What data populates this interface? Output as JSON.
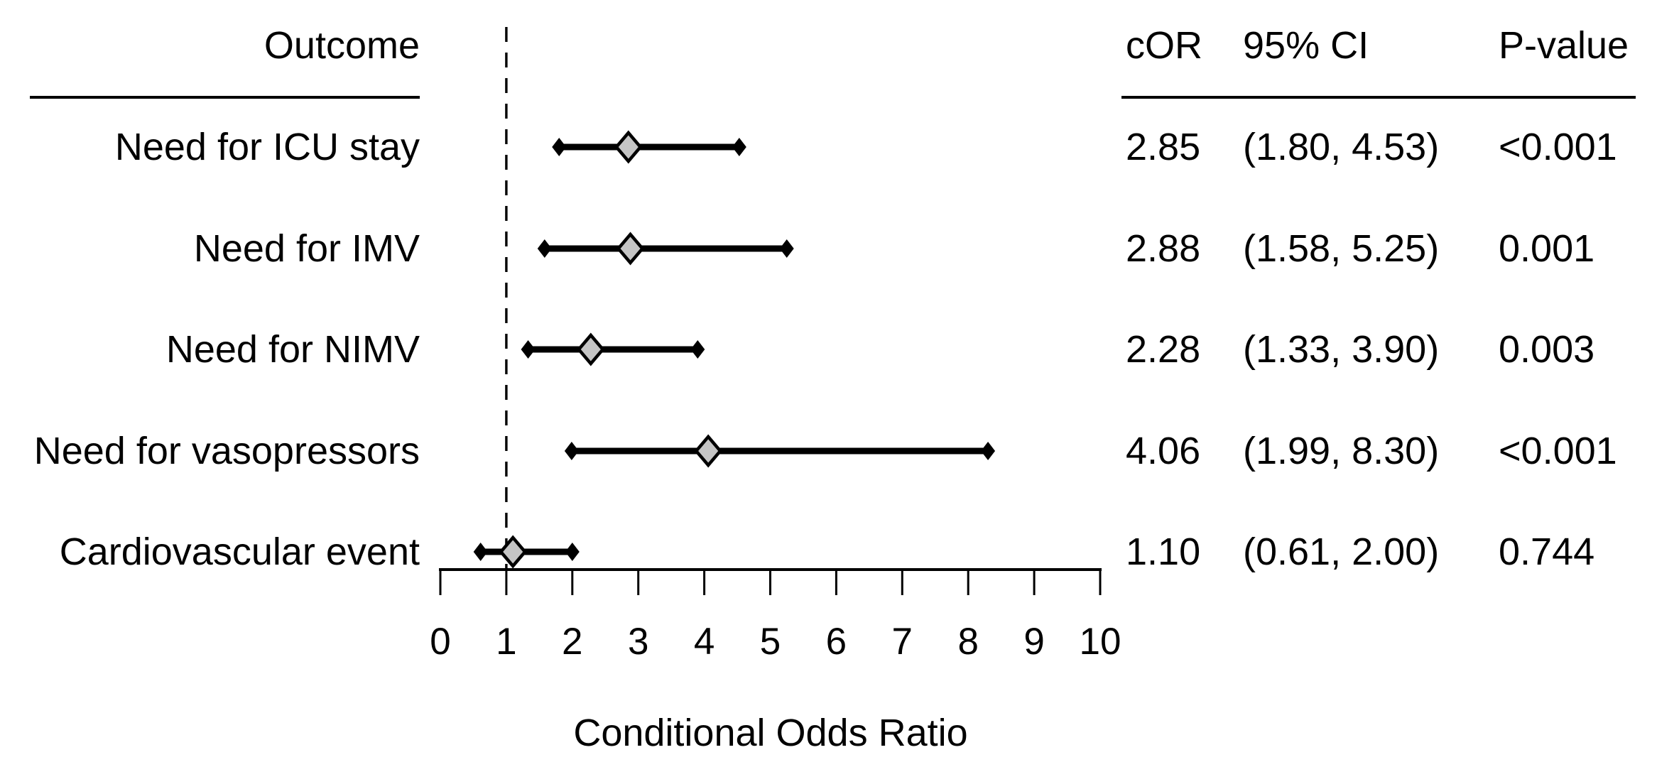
{
  "chart_data": {
    "type": "scatter",
    "variant": "forest-plot",
    "xlabel": "Conditional Odds Ratio",
    "xlim": [
      0,
      10
    ],
    "x_ticks": [
      "0",
      "1",
      "2",
      "3",
      "4",
      "5",
      "6",
      "7",
      "8",
      "9",
      "10"
    ],
    "reference_line_x": 1,
    "grid": "off",
    "columns": {
      "outcome": "Outcome",
      "cor": "cOR",
      "ci": "95% CI",
      "p": "P-value"
    },
    "rows": [
      {
        "outcome": "Need for ICU stay",
        "cor": 2.85,
        "cor_text": "2.85",
        "ci_low": 1.8,
        "ci_high": 4.53,
        "ci_text": "(1.80, 4.53)",
        "p_text": "<0.001"
      },
      {
        "outcome": "Need for IMV",
        "cor": 2.88,
        "cor_text": "2.88",
        "ci_low": 1.58,
        "ci_high": 5.25,
        "ci_text": "(1.58, 5.25)",
        "p_text": "0.001"
      },
      {
        "outcome": "Need for NIMV",
        "cor": 2.28,
        "cor_text": "2.28",
        "ci_low": 1.33,
        "ci_high": 3.9,
        "ci_text": "(1.33, 3.90)",
        "p_text": "0.003"
      },
      {
        "outcome": "Need for vasopressors",
        "cor": 4.06,
        "cor_text": "4.06",
        "ci_low": 1.99,
        "ci_high": 8.3,
        "ci_text": "(1.99, 8.30)",
        "p_text": "<0.001"
      },
      {
        "outcome": "Cardiovascular event",
        "cor": 1.1,
        "cor_text": "1.10",
        "ci_low": 0.61,
        "ci_high": 2.0,
        "ci_text": "(0.61, 2.00)",
        "p_text": "0.744"
      }
    ],
    "colors": {
      "marker_fill": "#c5c5c5",
      "marker_stroke": "#000000",
      "line": "#000000",
      "text": "#000000",
      "background": "#ffffff"
    }
  }
}
